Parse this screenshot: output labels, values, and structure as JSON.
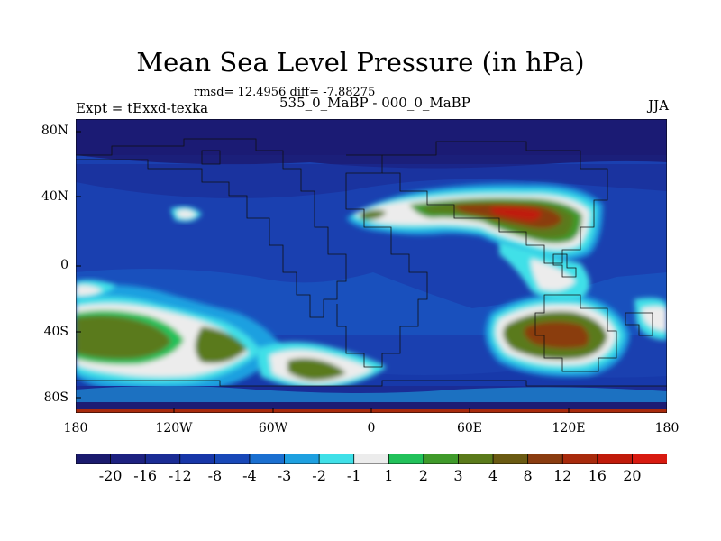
{
  "title": "Mean Sea Level Pressure (in hPa)",
  "stats": "rmsd= 12.4956 diff= -7.88275",
  "experiment": "Expt = tExxd-texka",
  "cases": "535_0_MaBP - 000_0_MaBP",
  "season": "JJA",
  "lat_ticks": [
    "80N",
    "40N",
    "0",
    "40S",
    "80S"
  ],
  "lon_ticks": [
    "180",
    "120W",
    "60W",
    "0",
    "60E",
    "120E",
    "180"
  ],
  "colorbar": {
    "labels": [
      "-20",
      "-16",
      "-12",
      "-8",
      "-4",
      "-3",
      "-2",
      "-1",
      "1",
      "2",
      "3",
      "4",
      "8",
      "12",
      "16",
      "20"
    ],
    "colors": [
      "#1a1a6e",
      "#1d2180",
      "#1a2c95",
      "#1736a8",
      "#1848b8",
      "#1a6fd0",
      "#1ea0e0",
      "#3fe0e8",
      "#ececec",
      "#22c15a",
      "#3f9a2a",
      "#5a7a1a",
      "#6a5a12",
      "#8a3c10",
      "#a82a0c",
      "#c01a0a",
      "#d81a10"
    ]
  },
  "map": {
    "ocean_color": "#1a3ea8",
    "cold_color": "#1a1a6e",
    "high_color": "#8a3c10",
    "peak_color": "#c01a0a"
  }
}
